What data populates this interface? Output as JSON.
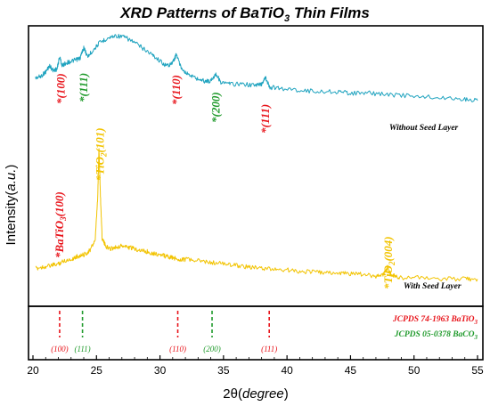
{
  "chart_data": {
    "type": "line",
    "title": "XRD Patterns of BaTiO",
    "title_sub": "3",
    "title_tail": " Thin Films",
    "xlabel_main": "2θ(",
    "xlabel_unit": "degree",
    "xlabel_close": ")",
    "ylabel_main": "Intensity(",
    "ylabel_unit": "a.u.",
    "ylabel_close": ")",
    "xlim": [
      20,
      55
    ],
    "xticks": [
      "20",
      "25",
      "30",
      "35",
      "40",
      "45",
      "50",
      "55"
    ],
    "series": [
      {
        "name": "Without Seed Layer",
        "color": "#1fa3bf",
        "x": [
          20.2,
          20.6,
          21.0,
          21.3,
          21.6,
          21.9,
          22.1,
          22.3,
          22.6,
          23.0,
          23.4,
          23.7,
          24.0,
          24.3,
          24.7,
          25.2,
          25.8,
          26.5,
          27.2,
          27.9,
          28.6,
          29.3,
          29.9,
          30.5,
          31.0,
          31.3,
          31.6,
          32.1,
          32.8,
          33.5,
          34.0,
          34.4,
          34.8,
          35.5,
          36.5,
          37.5,
          38.0,
          38.3,
          38.6,
          39.5,
          41.0,
          42.5,
          44.0,
          45.0,
          46.5,
          48.0,
          50.0,
          52.0,
          54.0,
          55.0
        ],
        "y": [
          0.52,
          0.53,
          0.56,
          0.6,
          0.57,
          0.58,
          0.66,
          0.6,
          0.62,
          0.63,
          0.64,
          0.65,
          0.72,
          0.66,
          0.7,
          0.75,
          0.78,
          0.8,
          0.79,
          0.76,
          0.72,
          0.68,
          0.64,
          0.6,
          0.62,
          0.68,
          0.6,
          0.55,
          0.52,
          0.5,
          0.5,
          0.55,
          0.49,
          0.48,
          0.48,
          0.47,
          0.48,
          0.53,
          0.46,
          0.45,
          0.44,
          0.43,
          0.43,
          0.42,
          0.42,
          0.41,
          0.4,
          0.39,
          0.38,
          0.37
        ]
      },
      {
        "name": "With Seed Layer",
        "color": "#f2c300",
        "x": [
          20.2,
          20.8,
          21.5,
          22.0,
          22.4,
          23.0,
          23.5,
          24.0,
          24.5,
          24.9,
          25.1,
          25.2,
          25.3,
          25.45,
          25.7,
          26.0,
          26.5,
          27.0,
          27.5,
          28.0,
          28.5,
          29.0,
          29.5,
          30.0,
          30.5,
          31.0,
          31.5,
          32.0,
          33.0,
          34.0,
          35.0,
          36.0,
          37.0,
          38.0,
          39.0,
          40.0,
          41.0,
          42.0,
          43.0,
          44.0,
          45.0,
          46.0,
          47.0,
          47.6,
          47.9,
          48.1,
          48.4,
          49.0,
          50.0,
          52.0,
          54.0,
          55.0
        ],
        "y": [
          0.05,
          0.06,
          0.07,
          0.08,
          0.1,
          0.11,
          0.13,
          0.14,
          0.17,
          0.24,
          0.52,
          0.85,
          0.55,
          0.25,
          0.2,
          0.18,
          0.19,
          0.2,
          0.19,
          0.18,
          0.17,
          0.16,
          0.15,
          0.14,
          0.13,
          0.12,
          0.11,
          0.11,
          0.1,
          0.09,
          0.08,
          0.07,
          0.06,
          0.05,
          0.045,
          0.04,
          0.03,
          0.03,
          0.02,
          0.02,
          0.015,
          0.01,
          0.0,
          0.01,
          0.06,
          0.02,
          0.0,
          -0.01,
          -0.01,
          -0.02,
          -0.02,
          -0.02
        ]
      }
    ],
    "series_labels": [
      "Without Seed Layer",
      "With Seed Layer"
    ],
    "annotations_top": [
      {
        "text": "*(100)",
        "x": 22.2,
        "color": "#e8141b"
      },
      {
        "text": "*(111)",
        "x": 24.0,
        "color": "#1f9a2b"
      },
      {
        "text": "*(110)",
        "x": 31.3,
        "color": "#e8141b"
      },
      {
        "text": "*(200)",
        "x": 34.4,
        "color": "#1f9a2b"
      },
      {
        "text": "*(111)",
        "x": 38.3,
        "color": "#e8141b"
      }
    ],
    "annotations_bottom": [
      {
        "pre": "*BaTiO",
        "sub": "3",
        "post": "(100)",
        "x": 22.1,
        "color": "#e8141b"
      },
      {
        "pre": "*TiO",
        "sub": "2",
        "post": "(101)",
        "x": 25.3,
        "color": "#f2c300"
      },
      {
        "pre": "*TiO",
        "sub": "2",
        "post": "(004)",
        "x": 48.0,
        "color": "#f2c300"
      }
    ],
    "reference_lines": [
      {
        "x": 22.1,
        "label": "(100)",
        "color": "#e8141b"
      },
      {
        "x": 23.9,
        "label": "(111)",
        "color": "#1f9a2b"
      },
      {
        "x": 31.4,
        "label": "(110)",
        "color": "#e8141b"
      },
      {
        "x": 34.1,
        "label": "(200)",
        "color": "#1f9a2b"
      },
      {
        "x": 38.6,
        "label": "(111)",
        "color": "#e8141b"
      }
    ],
    "references": [
      {
        "pre": "JCPDS 74-1963 BaTiO",
        "sub": "3",
        "color": "#e8141b"
      },
      {
        "pre": "JCPDS 05-0378 BaCO",
        "sub": "3",
        "color": "#1f9a2b"
      }
    ]
  }
}
